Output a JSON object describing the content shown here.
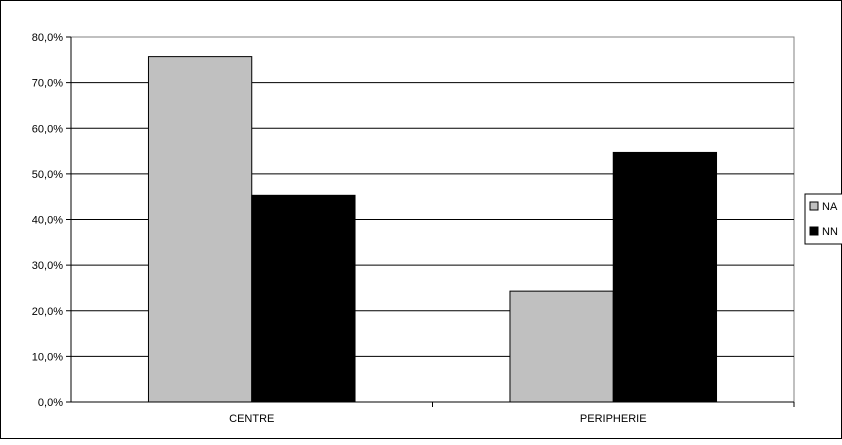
{
  "chart_data": {
    "type": "bar",
    "categories": [
      "CENTRE",
      "PERIPHERIE"
    ],
    "series": [
      {
        "name": "NA",
        "values": [
          75.7,
          24.3
        ],
        "color": "#c0c0c0"
      },
      {
        "name": "NN",
        "values": [
          45.3,
          54.7
        ],
        "color": "#000000"
      }
    ],
    "ylim": [
      0,
      80
    ],
    "yticks": [
      "0,0%",
      "10,0%",
      "20,0%",
      "30,0%",
      "40,0%",
      "50,0%",
      "60,0%",
      "70,0%",
      "80,0%"
    ],
    "grid": true,
    "legend": "right"
  }
}
